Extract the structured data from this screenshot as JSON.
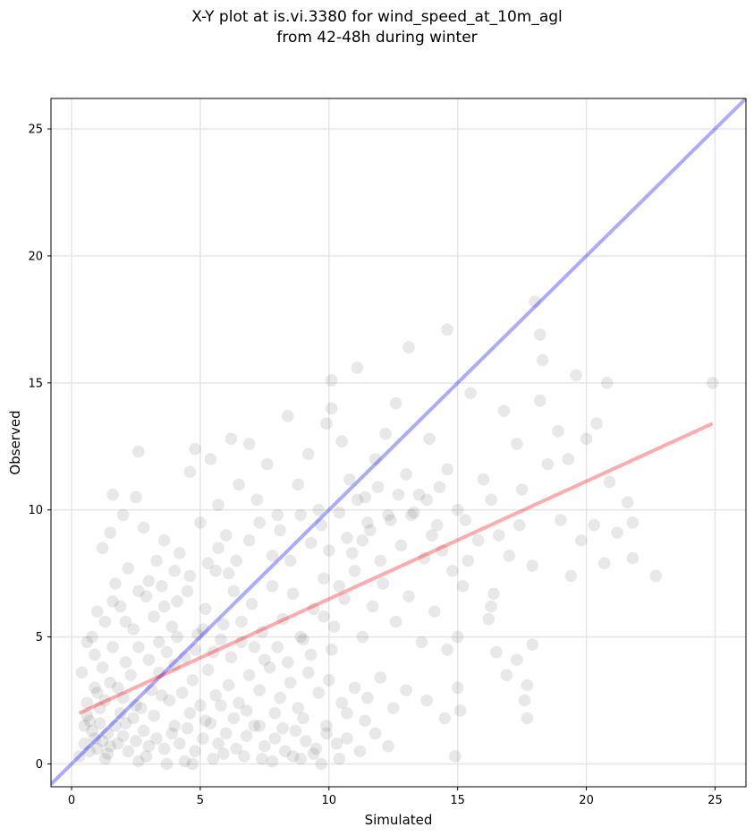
{
  "title_line1": "X-Y plot at is.vi.3380 for wind_speed_at_10m_agl",
  "title_line2": "from 42-48h during winter",
  "chart_data": {
    "type": "scatter",
    "xlabel": "Simulated",
    "ylabel": "Observed",
    "xlim": [
      -0.8,
      26.2
    ],
    "ylim": [
      -0.9,
      26.2
    ],
    "xticks": [
      0,
      5,
      10,
      15,
      20,
      25
    ],
    "yticks": [
      0,
      5,
      10,
      15,
      20,
      25
    ],
    "grid": true,
    "point_color": "#000000",
    "point_alpha": 0.09,
    "reference_line": {
      "name": "1:1",
      "color": "#0000ff",
      "slope": 1,
      "intercept": 0
    },
    "fit_line": {
      "color": "#ff0000",
      "x": [
        0.3,
        24.9
      ],
      "y": [
        2.0,
        13.4
      ]
    },
    "series": [
      {
        "values": [
          [
            0.5,
            0.8
          ],
          [
            0.7,
            0.5
          ],
          [
            0.9,
            1.0
          ],
          [
            1.0,
            0.6
          ],
          [
            1.2,
            0.9
          ],
          [
            0.8,
            1.3
          ],
          [
            1.5,
            0.7
          ],
          [
            1.1,
            1.6
          ],
          [
            0.6,
            1.9
          ],
          [
            1.4,
            1.2
          ],
          [
            1.8,
            0.8
          ],
          [
            2.0,
            1.1
          ],
          [
            2.2,
            0.5
          ],
          [
            1.7,
            1.5
          ],
          [
            2.5,
            0.9
          ],
          [
            2.8,
            1.3
          ],
          [
            3.0,
            0.7
          ],
          [
            2.4,
            1.8
          ],
          [
            3.3,
            1.0
          ],
          [
            3.6,
            0.6
          ],
          [
            3.9,
            1.2
          ],
          [
            4.2,
            0.8
          ],
          [
            4.5,
            1.4
          ],
          [
            4.8,
            0.5
          ],
          [
            5.1,
            1.0
          ],
          [
            5.4,
            1.6
          ],
          [
            5.7,
            0.8
          ],
          [
            6.0,
            1.2
          ],
          [
            6.4,
            0.6
          ],
          [
            6.8,
            1.1
          ],
          [
            7.1,
            1.5
          ],
          [
            7.5,
            0.7
          ],
          [
            7.9,
            1.0
          ],
          [
            8.3,
            0.5
          ],
          [
            8.7,
            1.3
          ],
          [
            9.1,
            0.9
          ],
          [
            9.5,
            0.6
          ],
          [
            9.9,
            1.2
          ],
          [
            10.3,
            0.8
          ],
          [
            10.7,
            1.0
          ],
          [
            0.3,
            0.3
          ],
          [
            1.3,
            0.2
          ],
          [
            2.6,
            0.1
          ],
          [
            3.7,
            0.0
          ],
          [
            4.4,
            0.1
          ],
          [
            5.5,
            0.2
          ],
          [
            6.7,
            0.3
          ],
          [
            7.8,
            0.1
          ],
          [
            8.9,
            0.2
          ],
          [
            9.7,
            0.0
          ],
          [
            0.6,
            2.4
          ],
          [
            1.0,
            2.8
          ],
          [
            1.5,
            3.2
          ],
          [
            2.0,
            2.6
          ],
          [
            2.3,
            3.5
          ],
          [
            1.2,
            3.8
          ],
          [
            0.9,
            4.3
          ],
          [
            1.6,
            4.6
          ],
          [
            2.7,
            2.2
          ],
          [
            3.1,
            2.9
          ],
          [
            3.4,
            3.6
          ],
          [
            3.8,
            2.5
          ],
          [
            4.0,
            3.9
          ],
          [
            4.3,
            2.8
          ],
          [
            4.7,
            3.3
          ],
          [
            5.0,
            2.3
          ],
          [
            5.3,
            3.7
          ],
          [
            5.6,
            2.7
          ],
          [
            6.1,
            3.1
          ],
          [
            6.5,
            2.4
          ],
          [
            6.9,
            3.5
          ],
          [
            7.3,
            2.9
          ],
          [
            7.7,
            3.8
          ],
          [
            8.1,
            2.6
          ],
          [
            8.5,
            3.2
          ],
          [
            8.8,
            2.2
          ],
          [
            9.2,
            3.6
          ],
          [
            9.6,
            2.8
          ],
          [
            10.0,
            3.3
          ],
          [
            10.5,
            2.4
          ],
          [
            11.0,
            3.0
          ],
          [
            11.5,
            2.6
          ],
          [
            12.0,
            3.4
          ],
          [
            12.5,
            2.2
          ],
          [
            13.0,
            2.9
          ],
          [
            13.8,
            2.5
          ],
          [
            14.5,
            1.8
          ],
          [
            15.1,
            2.1
          ],
          [
            15.0,
            3.0
          ],
          [
            11.8,
            1.2
          ],
          [
            0.8,
            5.0
          ],
          [
            1.3,
            5.6
          ],
          [
            1.9,
            6.2
          ],
          [
            2.4,
            5.3
          ],
          [
            2.9,
            6.6
          ],
          [
            1.0,
            6.0
          ],
          [
            1.7,
            7.1
          ],
          [
            2.2,
            7.7
          ],
          [
            3.2,
            5.8
          ],
          [
            3.5,
            7.0
          ],
          [
            3.9,
            5.4
          ],
          [
            4.1,
            6.4
          ],
          [
            4.6,
            7.4
          ],
          [
            4.9,
            5.1
          ],
          [
            5.2,
            6.1
          ],
          [
            5.6,
            7.6
          ],
          [
            5.9,
            5.5
          ],
          [
            6.3,
            6.8
          ],
          [
            6.6,
            4.8
          ],
          [
            7.0,
            6.3
          ],
          [
            7.4,
            5.2
          ],
          [
            7.8,
            7.0
          ],
          [
            8.2,
            5.7
          ],
          [
            8.6,
            6.7
          ],
          [
            9.0,
            4.9
          ],
          [
            9.4,
            6.1
          ],
          [
            9.8,
            7.3
          ],
          [
            10.2,
            5.4
          ],
          [
            10.6,
            6.5
          ],
          [
            11.0,
            7.6
          ],
          [
            11.3,
            5.0
          ],
          [
            11.7,
            6.2
          ],
          [
            12.1,
            7.1
          ],
          [
            12.6,
            5.6
          ],
          [
            13.1,
            6.6
          ],
          [
            13.6,
            4.8
          ],
          [
            14.1,
            6.0
          ],
          [
            14.6,
            4.5
          ],
          [
            15.2,
            7.0
          ],
          [
            15.0,
            5.0
          ],
          [
            1.2,
            8.5
          ],
          [
            1.5,
            9.1
          ],
          [
            1.6,
            10.6
          ],
          [
            2.0,
            9.8
          ],
          [
            2.5,
            10.5
          ],
          [
            2.6,
            12.3
          ],
          [
            2.8,
            9.3
          ],
          [
            3.3,
            8.0
          ],
          [
            3.6,
            8.8
          ],
          [
            4.2,
            8.3
          ],
          [
            4.6,
            11.5
          ],
          [
            4.8,
            12.4
          ],
          [
            5.0,
            9.5
          ],
          [
            5.4,
            12.0
          ],
          [
            5.7,
            10.2
          ],
          [
            6.0,
            9.0
          ],
          [
            6.2,
            12.8
          ],
          [
            6.5,
            11.0
          ],
          [
            6.9,
            12.6
          ],
          [
            7.2,
            10.4
          ],
          [
            7.6,
            11.8
          ],
          [
            8.0,
            9.8
          ],
          [
            8.4,
            13.7
          ],
          [
            8.8,
            11.0
          ],
          [
            9.2,
            12.2
          ],
          [
            9.6,
            10.0
          ],
          [
            9.9,
            13.4
          ],
          [
            10.1,
            14.0
          ],
          [
            10.1,
            15.1
          ],
          [
            10.5,
            12.7
          ],
          [
            10.8,
            11.2
          ],
          [
            11.1,
            15.6
          ],
          [
            11.4,
            10.5
          ],
          [
            11.8,
            12.0
          ],
          [
            12.2,
            13.0
          ],
          [
            12.6,
            14.2
          ],
          [
            13.0,
            11.4
          ],
          [
            13.1,
            16.4
          ],
          [
            13.5,
            10.6
          ],
          [
            13.9,
            12.8
          ],
          [
            14.2,
            9.4
          ],
          [
            14.6,
            17.1
          ],
          [
            14.6,
            11.6
          ],
          [
            15.0,
            10.0
          ],
          [
            15.3,
            9.6
          ],
          [
            15.5,
            14.6
          ],
          [
            15.8,
            8.8
          ],
          [
            16.0,
            11.2
          ],
          [
            16.3,
            10.4
          ],
          [
            16.6,
            9.0
          ],
          [
            16.8,
            13.9
          ],
          [
            17.0,
            8.2
          ],
          [
            17.3,
            12.6
          ],
          [
            17.5,
            10.8
          ],
          [
            17.9,
            7.8
          ],
          [
            18.0,
            18.2
          ],
          [
            18.2,
            14.3
          ],
          [
            18.2,
            16.9
          ],
          [
            18.3,
            15.9
          ],
          [
            18.5,
            11.8
          ],
          [
            18.9,
            13.1
          ],
          [
            19.0,
            9.6
          ],
          [
            19.3,
            12.0
          ],
          [
            19.6,
            15.3
          ],
          [
            19.4,
            7.4
          ],
          [
            19.8,
            8.8
          ],
          [
            20.0,
            12.8
          ],
          [
            20.3,
            9.4
          ],
          [
            20.4,
            13.4
          ],
          [
            20.8,
            15.0
          ],
          [
            20.9,
            11.1
          ],
          [
            21.2,
            9.1
          ],
          [
            21.6,
            10.3
          ],
          [
            21.8,
            8.1
          ],
          [
            21.8,
            9.5
          ],
          [
            20.7,
            7.9
          ],
          [
            22.7,
            7.4
          ],
          [
            24.9,
            15.0
          ],
          [
            17.4,
            9.4
          ],
          [
            16.4,
            6.7
          ],
          [
            16.2,
            5.7
          ],
          [
            16.5,
            4.4
          ],
          [
            16.9,
            3.5
          ],
          [
            17.3,
            4.1
          ],
          [
            17.7,
            3.1
          ],
          [
            17.6,
            2.5
          ],
          [
            17.7,
            1.8
          ],
          [
            17.9,
            4.7
          ],
          [
            16.3,
            6.2
          ],
          [
            14.9,
            0.3
          ],
          [
            0.4,
            3.6
          ],
          [
            0.6,
            4.8
          ],
          [
            0.9,
            3.0
          ],
          [
            1.1,
            2.2
          ],
          [
            0.5,
            1.5
          ],
          [
            1.9,
            2.0
          ],
          [
            2.1,
            4.0
          ],
          [
            2.6,
            4.6
          ],
          [
            3.0,
            4.1
          ],
          [
            3.4,
            4.8
          ],
          [
            3.7,
            4.4
          ],
          [
            4.1,
            5.0
          ],
          [
            4.4,
            4.2
          ],
          [
            4.8,
            4.5
          ],
          [
            5.1,
            5.3
          ],
          [
            5.5,
            4.4
          ],
          [
            5.8,
            4.9
          ],
          [
            6.2,
            4.2
          ],
          [
            6.6,
            5.6
          ],
          [
            7.1,
            4.6
          ],
          [
            7.5,
            4.1
          ],
          [
            8.0,
            4.6
          ],
          [
            8.4,
            4.0
          ],
          [
            8.9,
            5.0
          ],
          [
            9.3,
            4.3
          ],
          [
            9.8,
            5.8
          ],
          [
            10.1,
            4.5
          ],
          [
            10.4,
            7.0
          ],
          [
            10.9,
            8.3
          ],
          [
            11.3,
            8.8
          ],
          [
            11.6,
            9.2
          ],
          [
            12.0,
            8.0
          ],
          [
            12.4,
            9.6
          ],
          [
            12.8,
            8.6
          ],
          [
            13.2,
            9.8
          ],
          [
            13.7,
            8.1
          ],
          [
            14.0,
            9.0
          ],
          [
            14.4,
            8.4
          ],
          [
            14.8,
            7.6
          ],
          [
            15.4,
            8.0
          ],
          [
            1.4,
            0.4
          ],
          [
            2.9,
            0.3
          ],
          [
            4.7,
            0.0
          ],
          [
            5.9,
            0.4
          ],
          [
            7.4,
            0.2
          ],
          [
            8.6,
            0.3
          ],
          [
            9.4,
            0.4
          ],
          [
            10.4,
            0.2
          ],
          [
            11.2,
            0.5
          ],
          [
            12.3,
            0.7
          ],
          [
            0.7,
            1.7
          ],
          [
            1.3,
            2.5
          ],
          [
            1.8,
            3.0
          ],
          [
            2.1,
            1.6
          ],
          [
            2.5,
            2.3
          ],
          [
            3.2,
            1.9
          ],
          [
            3.5,
            2.7
          ],
          [
            4.0,
            1.5
          ],
          [
            4.6,
            2.0
          ],
          [
            5.2,
            1.7
          ],
          [
            5.8,
            2.3
          ],
          [
            6.3,
            1.8
          ],
          [
            6.8,
            2.1
          ],
          [
            7.3,
            1.5
          ],
          [
            7.9,
            2.0
          ],
          [
            8.2,
            1.4
          ],
          [
            9.0,
            1.8
          ],
          [
            9.9,
            1.5
          ],
          [
            10.7,
            2.0
          ],
          [
            11.4,
            1.7
          ],
          [
            6.4,
            8.0
          ],
          [
            6.9,
            8.8
          ],
          [
            7.3,
            9.5
          ],
          [
            7.8,
            8.2
          ],
          [
            8.1,
            9.2
          ],
          [
            8.5,
            8.0
          ],
          [
            8.9,
            9.8
          ],
          [
            9.3,
            8.7
          ],
          [
            9.7,
            9.4
          ],
          [
            10.0,
            8.4
          ],
          [
            10.4,
            9.9
          ],
          [
            10.7,
            8.9
          ],
          [
            11.1,
            10.4
          ],
          [
            11.5,
            9.5
          ],
          [
            11.9,
            10.9
          ],
          [
            12.3,
            9.8
          ],
          [
            12.7,
            10.6
          ],
          [
            13.3,
            9.9
          ],
          [
            13.8,
            10.4
          ],
          [
            14.3,
            10.9
          ],
          [
            5.3,
            7.9
          ],
          [
            5.7,
            8.5
          ],
          [
            6.1,
            7.5
          ],
          [
            4.5,
            6.8
          ],
          [
            4.0,
            7.6
          ],
          [
            3.6,
            6.2
          ],
          [
            3.0,
            7.2
          ],
          [
            2.6,
            6.8
          ],
          [
            2.1,
            5.6
          ],
          [
            1.6,
            6.4
          ]
        ]
      }
    ]
  }
}
